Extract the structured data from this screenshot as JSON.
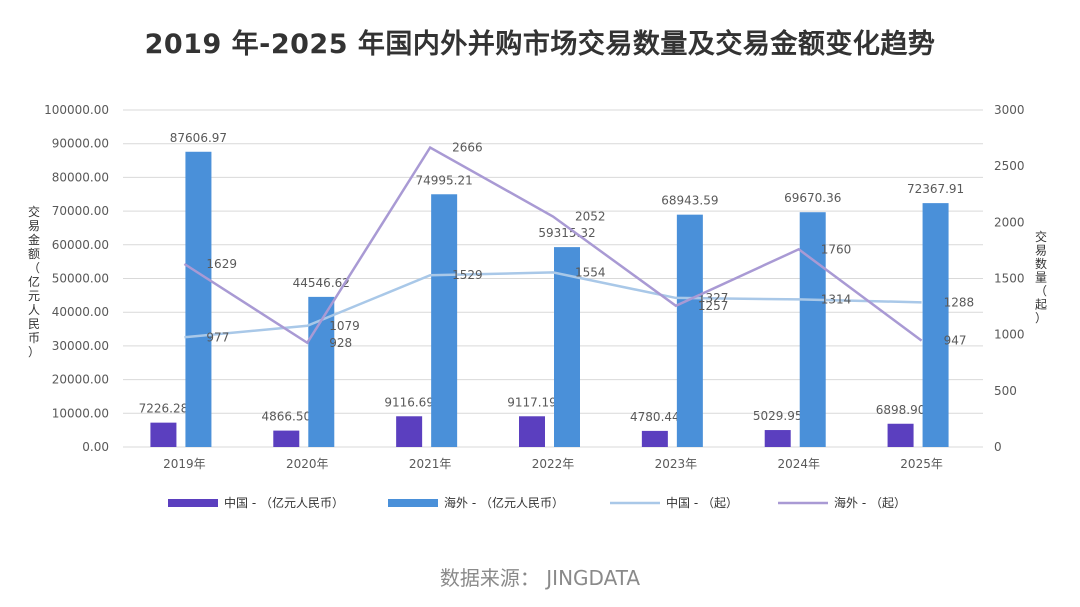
{
  "chart_data": {
    "type": "bar",
    "title": "2019 年-2025 年国内外并购市场交易数量及交易金额变化趋势",
    "categories": [
      "2019年",
      "2020年",
      "2021年",
      "2022年",
      "2023年",
      "2024年",
      "2025年"
    ],
    "series": [
      {
        "name": "中国 - （亿元人民币）",
        "type": "bar",
        "axis": "left",
        "color": "#5b3fbf",
        "values": [
          7226.28,
          4866.5,
          9116.69,
          9117.19,
          4780.44,
          5029.95,
          6898.9
        ],
        "labels": [
          "7226.28",
          "4866.50",
          "9116.69",
          "9117.19",
          "4780.44",
          "5029.95",
          "6898.90"
        ]
      },
      {
        "name": "海外 - （亿元人民币）",
        "type": "bar",
        "axis": "left",
        "color": "#4a90d9",
        "values": [
          87606.97,
          44546.62,
          74995.21,
          59315.32,
          68943.59,
          69670.36,
          72367.91
        ],
        "labels": [
          "87606.97",
          "44546.62",
          "74995.21",
          "59315.32",
          "68943.59",
          "69670.36",
          "72367.91"
        ]
      },
      {
        "name": "中国 - （起）",
        "type": "line",
        "axis": "right",
        "color": "#a9c8e8",
        "values": [
          977,
          1079,
          1529,
          1554,
          1327,
          1314,
          1288
        ],
        "labels": [
          "977",
          "1079",
          "1529",
          "1554",
          "1327",
          "1314",
          "1288"
        ]
      },
      {
        "name": "海外 - （起）",
        "type": "line",
        "axis": "right",
        "color": "#a99ad4",
        "values": [
          1629,
          928,
          2666,
          2052,
          1257,
          1760,
          947
        ],
        "labels": [
          "1629",
          "928",
          "2666",
          "2052",
          "1257",
          "1760",
          "947"
        ]
      }
    ],
    "ylabel": "交易金额（亿元人民币）",
    "y2label": "交易数量（起）",
    "ylim": [
      0,
      100000
    ],
    "y2lim": [
      0,
      3000
    ],
    "yticks": [
      "0.00",
      "10000.00",
      "20000.00",
      "30000.00",
      "40000.00",
      "50000.00",
      "60000.00",
      "70000.00",
      "80000.00",
      "90000.00",
      "100000.00"
    ],
    "y2ticks": [
      "0",
      "500",
      "1000",
      "1500",
      "2000",
      "2500",
      "3000"
    ],
    "grid": true,
    "legend": "bottom"
  },
  "source": "数据来源：  JINGDATA",
  "colors": {
    "grid": "#d9d9d9",
    "text": "#595959"
  }
}
